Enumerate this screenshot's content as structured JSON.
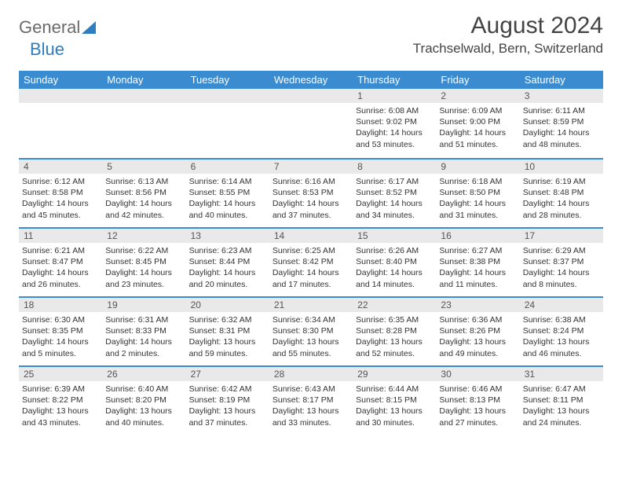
{
  "logo": {
    "text1": "General",
    "text2": "Blue"
  },
  "header": {
    "month_title": "August 2024",
    "location": "Trachselwald, Bern, Switzerland"
  },
  "weekdays": [
    "Sunday",
    "Monday",
    "Tuesday",
    "Wednesday",
    "Thursday",
    "Friday",
    "Saturday"
  ],
  "colors": {
    "header_bg": "#3b8bd0",
    "header_text": "#ffffff",
    "daynum_bg": "#e9e9e9",
    "border": "#3b8bd0",
    "logo_gray": "#6b6b6b",
    "logo_blue": "#2d7dc1"
  },
  "layout": {
    "cols": 7,
    "rows": 5,
    "month_title_fontsize": 30,
    "location_fontsize": 17,
    "weekday_fontsize": 13,
    "daynum_fontsize": 12,
    "info_fontsize": 10.5
  },
  "weeks": [
    [
      {
        "num": "",
        "sunrise": "",
        "sunset": "",
        "daylight1": "",
        "daylight2": ""
      },
      {
        "num": "",
        "sunrise": "",
        "sunset": "",
        "daylight1": "",
        "daylight2": ""
      },
      {
        "num": "",
        "sunrise": "",
        "sunset": "",
        "daylight1": "",
        "daylight2": ""
      },
      {
        "num": "",
        "sunrise": "",
        "sunset": "",
        "daylight1": "",
        "daylight2": ""
      },
      {
        "num": "1",
        "sunrise": "Sunrise: 6:08 AM",
        "sunset": "Sunset: 9:02 PM",
        "daylight1": "Daylight: 14 hours",
        "daylight2": "and 53 minutes."
      },
      {
        "num": "2",
        "sunrise": "Sunrise: 6:09 AM",
        "sunset": "Sunset: 9:00 PM",
        "daylight1": "Daylight: 14 hours",
        "daylight2": "and 51 minutes."
      },
      {
        "num": "3",
        "sunrise": "Sunrise: 6:11 AM",
        "sunset": "Sunset: 8:59 PM",
        "daylight1": "Daylight: 14 hours",
        "daylight2": "and 48 minutes."
      }
    ],
    [
      {
        "num": "4",
        "sunrise": "Sunrise: 6:12 AM",
        "sunset": "Sunset: 8:58 PM",
        "daylight1": "Daylight: 14 hours",
        "daylight2": "and 45 minutes."
      },
      {
        "num": "5",
        "sunrise": "Sunrise: 6:13 AM",
        "sunset": "Sunset: 8:56 PM",
        "daylight1": "Daylight: 14 hours",
        "daylight2": "and 42 minutes."
      },
      {
        "num": "6",
        "sunrise": "Sunrise: 6:14 AM",
        "sunset": "Sunset: 8:55 PM",
        "daylight1": "Daylight: 14 hours",
        "daylight2": "and 40 minutes."
      },
      {
        "num": "7",
        "sunrise": "Sunrise: 6:16 AM",
        "sunset": "Sunset: 8:53 PM",
        "daylight1": "Daylight: 14 hours",
        "daylight2": "and 37 minutes."
      },
      {
        "num": "8",
        "sunrise": "Sunrise: 6:17 AM",
        "sunset": "Sunset: 8:52 PM",
        "daylight1": "Daylight: 14 hours",
        "daylight2": "and 34 minutes."
      },
      {
        "num": "9",
        "sunrise": "Sunrise: 6:18 AM",
        "sunset": "Sunset: 8:50 PM",
        "daylight1": "Daylight: 14 hours",
        "daylight2": "and 31 minutes."
      },
      {
        "num": "10",
        "sunrise": "Sunrise: 6:19 AM",
        "sunset": "Sunset: 8:48 PM",
        "daylight1": "Daylight: 14 hours",
        "daylight2": "and 28 minutes."
      }
    ],
    [
      {
        "num": "11",
        "sunrise": "Sunrise: 6:21 AM",
        "sunset": "Sunset: 8:47 PM",
        "daylight1": "Daylight: 14 hours",
        "daylight2": "and 26 minutes."
      },
      {
        "num": "12",
        "sunrise": "Sunrise: 6:22 AM",
        "sunset": "Sunset: 8:45 PM",
        "daylight1": "Daylight: 14 hours",
        "daylight2": "and 23 minutes."
      },
      {
        "num": "13",
        "sunrise": "Sunrise: 6:23 AM",
        "sunset": "Sunset: 8:44 PM",
        "daylight1": "Daylight: 14 hours",
        "daylight2": "and 20 minutes."
      },
      {
        "num": "14",
        "sunrise": "Sunrise: 6:25 AM",
        "sunset": "Sunset: 8:42 PM",
        "daylight1": "Daylight: 14 hours",
        "daylight2": "and 17 minutes."
      },
      {
        "num": "15",
        "sunrise": "Sunrise: 6:26 AM",
        "sunset": "Sunset: 8:40 PM",
        "daylight1": "Daylight: 14 hours",
        "daylight2": "and 14 minutes."
      },
      {
        "num": "16",
        "sunrise": "Sunrise: 6:27 AM",
        "sunset": "Sunset: 8:38 PM",
        "daylight1": "Daylight: 14 hours",
        "daylight2": "and 11 minutes."
      },
      {
        "num": "17",
        "sunrise": "Sunrise: 6:29 AM",
        "sunset": "Sunset: 8:37 PM",
        "daylight1": "Daylight: 14 hours",
        "daylight2": "and 8 minutes."
      }
    ],
    [
      {
        "num": "18",
        "sunrise": "Sunrise: 6:30 AM",
        "sunset": "Sunset: 8:35 PM",
        "daylight1": "Daylight: 14 hours",
        "daylight2": "and 5 minutes."
      },
      {
        "num": "19",
        "sunrise": "Sunrise: 6:31 AM",
        "sunset": "Sunset: 8:33 PM",
        "daylight1": "Daylight: 14 hours",
        "daylight2": "and 2 minutes."
      },
      {
        "num": "20",
        "sunrise": "Sunrise: 6:32 AM",
        "sunset": "Sunset: 8:31 PM",
        "daylight1": "Daylight: 13 hours",
        "daylight2": "and 59 minutes."
      },
      {
        "num": "21",
        "sunrise": "Sunrise: 6:34 AM",
        "sunset": "Sunset: 8:30 PM",
        "daylight1": "Daylight: 13 hours",
        "daylight2": "and 55 minutes."
      },
      {
        "num": "22",
        "sunrise": "Sunrise: 6:35 AM",
        "sunset": "Sunset: 8:28 PM",
        "daylight1": "Daylight: 13 hours",
        "daylight2": "and 52 minutes."
      },
      {
        "num": "23",
        "sunrise": "Sunrise: 6:36 AM",
        "sunset": "Sunset: 8:26 PM",
        "daylight1": "Daylight: 13 hours",
        "daylight2": "and 49 minutes."
      },
      {
        "num": "24",
        "sunrise": "Sunrise: 6:38 AM",
        "sunset": "Sunset: 8:24 PM",
        "daylight1": "Daylight: 13 hours",
        "daylight2": "and 46 minutes."
      }
    ],
    [
      {
        "num": "25",
        "sunrise": "Sunrise: 6:39 AM",
        "sunset": "Sunset: 8:22 PM",
        "daylight1": "Daylight: 13 hours",
        "daylight2": "and 43 minutes."
      },
      {
        "num": "26",
        "sunrise": "Sunrise: 6:40 AM",
        "sunset": "Sunset: 8:20 PM",
        "daylight1": "Daylight: 13 hours",
        "daylight2": "and 40 minutes."
      },
      {
        "num": "27",
        "sunrise": "Sunrise: 6:42 AM",
        "sunset": "Sunset: 8:19 PM",
        "daylight1": "Daylight: 13 hours",
        "daylight2": "and 37 minutes."
      },
      {
        "num": "28",
        "sunrise": "Sunrise: 6:43 AM",
        "sunset": "Sunset: 8:17 PM",
        "daylight1": "Daylight: 13 hours",
        "daylight2": "and 33 minutes."
      },
      {
        "num": "29",
        "sunrise": "Sunrise: 6:44 AM",
        "sunset": "Sunset: 8:15 PM",
        "daylight1": "Daylight: 13 hours",
        "daylight2": "and 30 minutes."
      },
      {
        "num": "30",
        "sunrise": "Sunrise: 6:46 AM",
        "sunset": "Sunset: 8:13 PM",
        "daylight1": "Daylight: 13 hours",
        "daylight2": "and 27 minutes."
      },
      {
        "num": "31",
        "sunrise": "Sunrise: 6:47 AM",
        "sunset": "Sunset: 8:11 PM",
        "daylight1": "Daylight: 13 hours",
        "daylight2": "and 24 minutes."
      }
    ]
  ]
}
